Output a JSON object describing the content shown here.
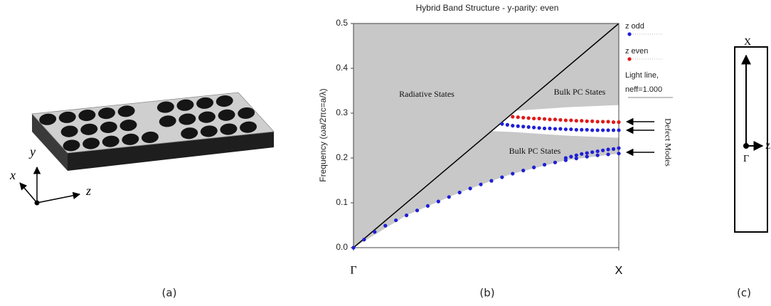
{
  "chart_data": {
    "type": "scatter",
    "title": "Hybrid Band Structure - y-parity: even",
    "y_label": "Frequency (ωa/2πc=a/λ)",
    "caption": "(b)",
    "xlim": [
      0,
      0.5
    ],
    "xticks": [
      {
        "value": 0,
        "label": "Γ"
      },
      {
        "value": 0.5,
        "label": "X"
      }
    ],
    "ylim": [
      0,
      0.5
    ],
    "yticks": [
      {
        "value": 0,
        "label": "0.0"
      },
      0.1,
      0.2,
      0.3,
      0.4,
      0.5
    ],
    "grid": false,
    "series": [
      {
        "name": "z odd",
        "color": "#1f1fd6",
        "x": [
          0,
          0.02,
          0.04,
          0.06,
          0.08,
          0.1,
          0.12,
          0.14,
          0.16,
          0.18,
          0.2,
          0.22,
          0.24,
          0.26,
          0.28,
          0.3,
          0.32,
          0.34,
          0.36,
          0.38,
          0.4,
          0.42,
          0.44,
          0.46,
          0.48,
          0.5,
          0.28,
          0.29,
          0.3,
          0.31,
          0.32,
          0.33,
          0.34,
          0.35,
          0.36,
          0.37,
          0.38,
          0.39,
          0.4,
          0.41,
          0.42,
          0.43,
          0.44,
          0.45,
          0.46,
          0.47,
          0.48,
          0.49,
          0.5,
          0.4,
          0.41,
          0.42,
          0.43,
          0.44,
          0.45,
          0.46,
          0.47,
          0.48,
          0.49,
          0.5
        ],
        "values": [
          0,
          0.018,
          0.035,
          0.049,
          0.061,
          0.072,
          0.083,
          0.093,
          0.103,
          0.113,
          0.123,
          0.132,
          0.141,
          0.149,
          0.157,
          0.165,
          0.172,
          0.179,
          0.185,
          0.19,
          0.195,
          0.199,
          0.203,
          0.206,
          0.208,
          0.21,
          0.276,
          0.274,
          0.272,
          0.271,
          0.27,
          0.269,
          0.268,
          0.267,
          0.266,
          0.266,
          0.265,
          0.265,
          0.264,
          0.264,
          0.263,
          0.263,
          0.263,
          0.262,
          0.262,
          0.262,
          0.262,
          0.262,
          0.262,
          0.2,
          0.203,
          0.206,
          0.209,
          0.211,
          0.213,
          0.215,
          0.217,
          0.219,
          0.22,
          0.222
        ]
      },
      {
        "name": "z even",
        "color": "#e01818",
        "x": [
          0.3,
          0.31,
          0.32,
          0.33,
          0.34,
          0.35,
          0.36,
          0.37,
          0.38,
          0.39,
          0.4,
          0.41,
          0.42,
          0.43,
          0.44,
          0.45,
          0.46,
          0.47,
          0.48,
          0.49,
          0.5
        ],
        "values": [
          0.292,
          0.291,
          0.29,
          0.289,
          0.288,
          0.288,
          0.287,
          0.286,
          0.286,
          0.285,
          0.284,
          0.284,
          0.283,
          0.283,
          0.282,
          0.282,
          0.281,
          0.281,
          0.281,
          0.28,
          0.28
        ]
      }
    ],
    "light_line": {
      "name": "Light line, neff=1.000",
      "color": "#000000",
      "x": [
        0,
        0.5
      ],
      "values": [
        0,
        0.5
      ]
    },
    "band_color": "#c8c8c8",
    "bands": [
      {
        "x": [
          0,
          0.5
        ],
        "lower": [
          0,
          0.5
        ],
        "upper": [
          0.5,
          0.5
        ]
      },
      {
        "x": [
          0,
          0.1,
          0.2,
          0.26,
          0.3,
          0.4,
          0.5
        ],
        "lower": [
          0,
          0.072,
          0.123,
          0.149,
          0.165,
          0.195,
          0.21
        ],
        "upper": [
          0,
          0.1,
          0.2,
          0.26,
          0.258,
          0.25,
          0.245
        ]
      },
      {
        "x": [
          0.26,
          0.3,
          0.4,
          0.5
        ],
        "lower": [
          0.26,
          0.305,
          0.313,
          0.318
        ],
        "upper": [
          0.5,
          0.5,
          0.5,
          0.5
        ]
      }
    ],
    "annotations": [
      "Radiative States",
      "Bulk PC States",
      "Bulk PC States",
      "Defect Modes"
    ]
  },
  "panel_a": {
    "caption": "(a)",
    "axes": [
      "x",
      "y",
      "z"
    ]
  },
  "panel_c": {
    "caption": "(c)",
    "points": [
      "X",
      "Γ",
      "Z"
    ]
  }
}
